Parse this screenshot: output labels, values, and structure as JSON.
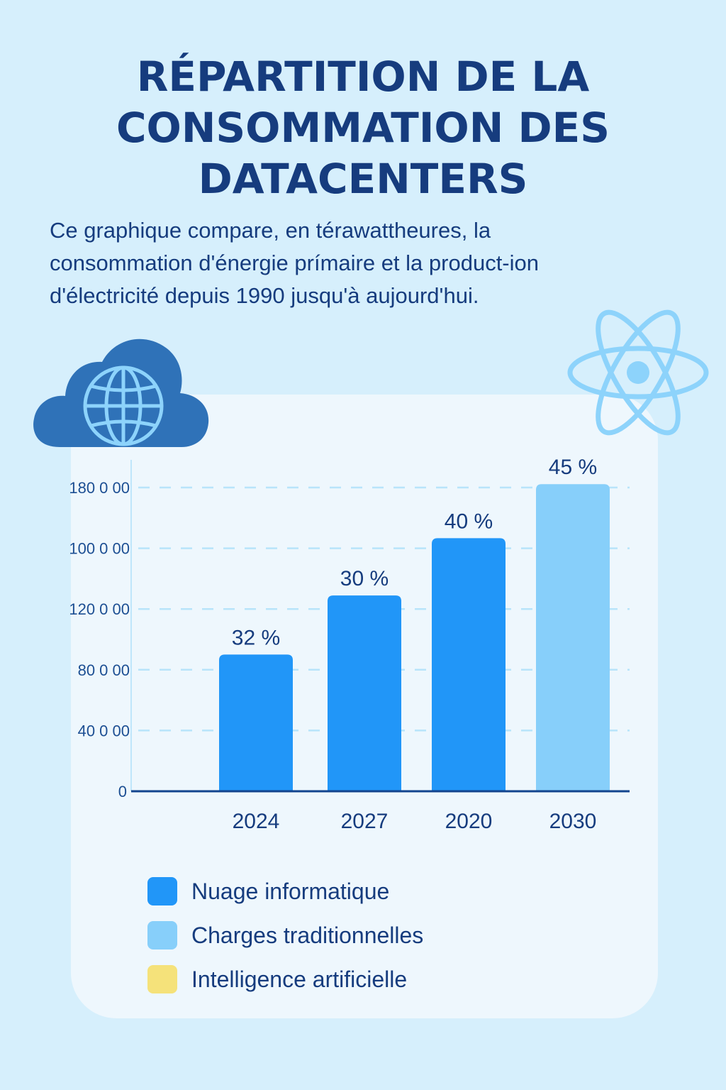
{
  "title": "RÉPARTITION DE LA CONSOMMATION DES DATACENTERS",
  "subtitle": "Ce graphique compare, en térawattheures, la consommation d'énergie prímaire et la product-ion d'électricité depuis 1990 jusqu'à aujourd'hui.",
  "icons": {
    "cloud": "cloud-globe-icon",
    "atom": "atom-icon"
  },
  "chart_data": {
    "type": "bar",
    "title": "",
    "xlabel": "",
    "ylabel": "",
    "categories": [
      "2024",
      "2027",
      "2020",
      "2030"
    ],
    "values": [
      81000,
      116000,
      150000,
      182000
    ],
    "data_labels": [
      "32 %",
      "30 %",
      "40 %",
      "45 %"
    ],
    "bar_colors": [
      "#2196f8",
      "#2196f8",
      "#2196f8",
      "#87cffa"
    ],
    "y_tick_labels": [
      "0",
      "40 0 00",
      "80 0 00",
      "120 0 00",
      "100 0 00",
      "180 0 00"
    ],
    "ylim": [
      0,
      180000
    ],
    "grid": true,
    "legend_position": "bottom",
    "legend": [
      {
        "label": "Nuage informatique",
        "color": "#2196f8"
      },
      {
        "label": "Charges traditionnelles",
        "color": "#87cffa"
      },
      {
        "label": "Intelligence artificielle",
        "color": "#f5e27a"
      }
    ]
  }
}
